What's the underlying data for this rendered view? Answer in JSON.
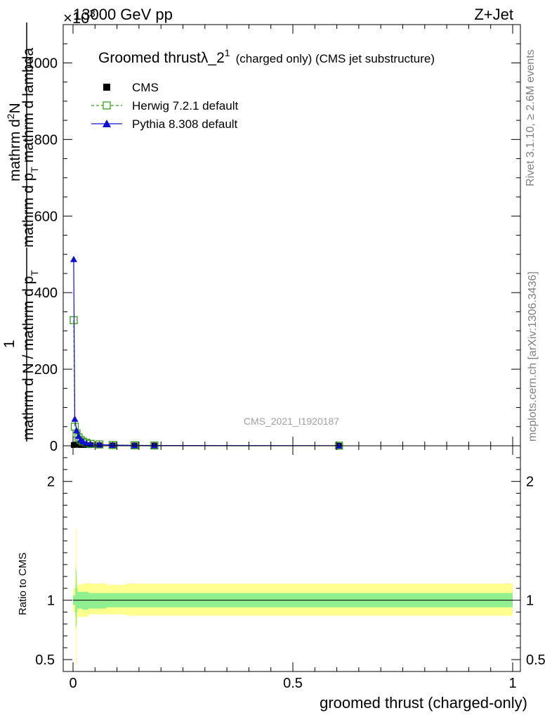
{
  "header": {
    "energy_label": "13000 GeV pp",
    "exponent_label": "×10",
    "exponent_power": "3",
    "process_label": "Z+Jet"
  },
  "side_text": {
    "rivet": "Rivet 3.1.10, ≥ 2.6M events",
    "mcplots": "mcplots.cern.ch [arXiv:1306.3436]"
  },
  "title": {
    "main": "Groomed thrustλ_2",
    "superscript": "1",
    "sub": "(charged only) (CMS jet substructure)"
  },
  "analysis_id": "CMS_2021_I1920187",
  "ylabel_top": {
    "numerator": "mathrm d",
    "numerator_sup": "2",
    "numerator_rest": "N",
    "denominator_a": "mathrm d p",
    "denominator_sub": "T",
    "denominator_b": " mathrm d lambda"
  },
  "ylabel_bottom": {
    "numerator": "1",
    "denominator_a": "mathrm d N / mathrm d p",
    "denominator_sub": "T"
  },
  "xlabel": "groomed thrust (charged-only)",
  "ratio_ylabel": "Ratio to CMS",
  "legend": [
    {
      "name": "CMS",
      "color": "#000000",
      "marker": "filled-square",
      "line": "none"
    },
    {
      "name": "Herwig 7.2.1 default",
      "color": "#3a9d1a",
      "marker": "open-square",
      "line": "dashed"
    },
    {
      "name": "Pythia 8.308 default",
      "color": "#1010d0",
      "marker": "filled-triangle",
      "line": "solid"
    }
  ],
  "chart_data": {
    "type": "scatter",
    "xlim": [
      0,
      1
    ],
    "ylim_main": [
      0,
      1100
    ],
    "ylim_ratio": [
      0.4,
      2.3
    ],
    "main_yticks": [
      0,
      200,
      400,
      600,
      800,
      1000
    ],
    "main_ytick_labels": [
      "0",
      "200",
      "400",
      "600",
      "800",
      "1000"
    ],
    "ratio_yticks": [
      0.5,
      1,
      2
    ],
    "ratio_ytick_labels": [
      "0.5",
      "1",
      "2"
    ],
    "xticks": [
      0,
      0.5,
      1
    ],
    "xtick_labels": [
      "0",
      "0.5",
      "1"
    ],
    "series": [
      {
        "name": "CMS",
        "x": [
          0.0015,
          0.004,
          0.008,
          0.0125,
          0.0175,
          0.0225,
          0.03,
          0.04,
          0.06,
          0.09,
          0.14,
          0.185,
          0.605
        ],
        "y": [
          2,
          3,
          3,
          2.5,
          2,
          2,
          1.8,
          1.6,
          1.4,
          1.2,
          0.8,
          0.6,
          0.2
        ]
      },
      {
        "name": "Herwig 7.2.1 default",
        "x": [
          0.0015,
          0.004,
          0.008,
          0.0125,
          0.0175,
          0.0225,
          0.03,
          0.04,
          0.06,
          0.09,
          0.14,
          0.185,
          0.605
        ],
        "y": [
          328,
          50,
          32,
          22,
          15,
          11,
          8,
          5,
          3.5,
          2,
          1.2,
          0.8,
          0.2
        ]
      },
      {
        "name": "Pythia 8.308 default",
        "x": [
          0.0015,
          0.004,
          0.008,
          0.0125,
          0.0175,
          0.0225,
          0.03,
          0.04,
          0.06,
          0.09,
          0.14,
          0.185,
          0.605
        ],
        "y": [
          487,
          70,
          40,
          25,
          16,
          11,
          7,
          4.5,
          3,
          1.8,
          1,
          0.7,
          0.2
        ]
      }
    ],
    "ratio_band_stat": {
      "color": "#90f090",
      "x": [
        0.0,
        0.005,
        0.006,
        0.008,
        0.01,
        0.02,
        0.035,
        0.075,
        0.12,
        0.21,
        1.0
      ],
      "lo": [
        0.96,
        0.87,
        0.78,
        0.9,
        0.93,
        0.92,
        0.93,
        0.94,
        0.94,
        0.94,
        0.94
      ],
      "hi": [
        1.04,
        1.13,
        1.25,
        1.1,
        1.07,
        1.07,
        1.06,
        1.06,
        1.06,
        1.06,
        1.06
      ]
    },
    "ratio_band_total": {
      "color": "#ffff90",
      "x": [
        0.0,
        0.005,
        0.006,
        0.008,
        0.01,
        0.02,
        0.035,
        0.075,
        0.12,
        0.21,
        1.0
      ],
      "lo": [
        0.9,
        0.75,
        0.45,
        0.8,
        0.86,
        0.86,
        0.88,
        0.88,
        0.87,
        0.87,
        0.88
      ],
      "hi": [
        1.1,
        1.3,
        1.6,
        1.2,
        1.13,
        1.14,
        1.14,
        1.13,
        1.14,
        1.14,
        1.13
      ]
    },
    "ratio_reference_line": 1
  }
}
